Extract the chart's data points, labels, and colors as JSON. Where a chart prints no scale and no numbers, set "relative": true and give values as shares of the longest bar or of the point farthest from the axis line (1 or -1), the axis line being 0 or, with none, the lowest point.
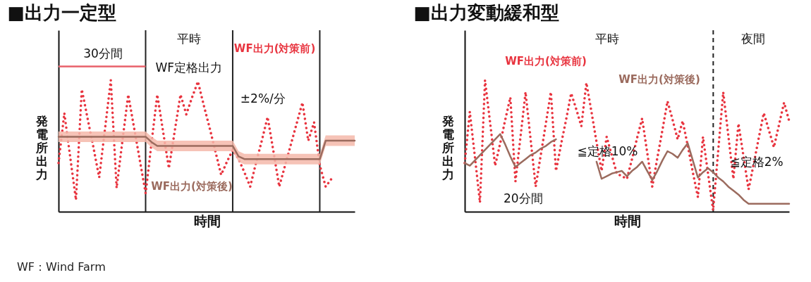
{
  "chart_data": [
    {
      "type": "line",
      "title": "■出力一定型",
      "xlabel": "時間",
      "ylabel": "発電所出力",
      "relative": true,
      "grid": "x",
      "categories": [
        null,
        null,
        null,
        null,
        null,
        null,
        null,
        null,
        null,
        null,
        null,
        null,
        null,
        null,
        null,
        null,
        null,
        null,
        null,
        null,
        null,
        null,
        null,
        null,
        null,
        null,
        null,
        null,
        null,
        null,
        null,
        null,
        null,
        null,
        null,
        null,
        null,
        null,
        null,
        null,
        null,
        null,
        null,
        null,
        null,
        null,
        null,
        null,
        null,
        null,
        null,
        null
      ],
      "series": [
        {
          "name": "WF出力(対策前)",
          "color": "#e8343f",
          "line_style": "dotted",
          "values": [
            0.37,
            0.75,
            0.42,
            0.09,
            0.93,
            0.71,
            0.49,
            0.26,
            0.63,
            1.0,
            0.18,
            0.54,
            0.89,
            0.64,
            0.39,
            0.14,
            0.52,
            0.89,
            0.61,
            0.33,
            0.61,
            0.89,
            0.74,
            0.87,
            0.99,
            0.81,
            0.64,
            0.46,
            0.28,
            0.38,
            0.47,
            0.4,
            0.3,
            0.19,
            0.37,
            0.54,
            0.72,
            0.46,
            0.19,
            0.35,
            0.51,
            0.67,
            0.83,
            0.54,
            0.68,
            0.35,
            0.19,
            0.25,
            null,
            null,
            null,
            null
          ]
        },
        {
          "name": "WF出力(対策後)",
          "color": "#9b6b5e",
          "line_style": "solid",
          "values": [
            0.57,
            0.57,
            0.57,
            0.57,
            0.57,
            0.57,
            0.57,
            0.57,
            0.57,
            0.57,
            0.57,
            0.57,
            0.57,
            0.57,
            0.57,
            0.57,
            0.53,
            0.5,
            0.5,
            0.5,
            0.5,
            0.5,
            0.5,
            0.5,
            0.5,
            0.5,
            0.5,
            0.5,
            0.5,
            0.5,
            0.5,
            0.42,
            0.4,
            0.4,
            0.4,
            0.4,
            0.4,
            0.4,
            0.4,
            0.4,
            0.4,
            0.4,
            0.4,
            0.4,
            0.4,
            0.4,
            0.54,
            0.54,
            0.54,
            0.54,
            0.54,
            0.54
          ],
          "lower": [
            0.53,
            0.53,
            0.53,
            0.53,
            0.53,
            0.53,
            0.53,
            0.53,
            0.53,
            0.53,
            0.53,
            0.53,
            0.53,
            0.53,
            0.53,
            0.53,
            0.49,
            0.46,
            0.46,
            0.46,
            0.46,
            0.46,
            0.46,
            0.46,
            0.46,
            0.46,
            0.46,
            0.46,
            0.46,
            0.46,
            0.46,
            0.38,
            0.36,
            0.36,
            0.36,
            0.36,
            0.36,
            0.36,
            0.36,
            0.36,
            0.36,
            0.36,
            0.36,
            0.36,
            0.36,
            0.36,
            0.5,
            0.5,
            0.5,
            0.5,
            0.5,
            0.5
          ],
          "upper": [
            0.61,
            0.61,
            0.61,
            0.61,
            0.61,
            0.61,
            0.61,
            0.61,
            0.61,
            0.61,
            0.61,
            0.61,
            0.61,
            0.61,
            0.61,
            0.61,
            0.57,
            0.54,
            0.54,
            0.54,
            0.54,
            0.54,
            0.54,
            0.54,
            0.54,
            0.54,
            0.54,
            0.54,
            0.54,
            0.54,
            0.54,
            0.46,
            0.44,
            0.44,
            0.44,
            0.44,
            0.44,
            0.44,
            0.44,
            0.44,
            0.44,
            0.44,
            0.44,
            0.44,
            0.44,
            0.44,
            0.58,
            0.58,
            0.58,
            0.58,
            0.58,
            0.58
          ]
        }
      ],
      "annotations": [
        "30分間",
        "平時",
        "WF定格出力",
        "±2%/分",
        "WF：Wind Farm"
      ]
    },
    {
      "type": "line",
      "title": "■出力変動緩和型",
      "xlabel": "時間",
      "ylabel": "発電所出力",
      "relative": true,
      "categories": [
        null,
        null,
        null,
        null,
        null,
        null,
        null,
        null,
        null,
        null,
        null,
        null,
        null,
        null,
        null,
        null,
        null,
        null,
        null,
        null,
        null,
        null,
        null,
        null,
        null,
        null,
        null,
        null,
        null,
        null,
        null,
        null,
        null,
        null,
        null,
        null,
        null,
        null,
        null,
        null,
        null,
        null,
        null,
        null,
        null,
        null,
        null,
        null,
        null,
        null,
        null,
        null,
        null,
        null,
        null,
        null,
        null,
        null,
        null,
        null,
        null,
        null,
        null,
        null,
        null
      ],
      "series": [
        {
          "name": "WF出力(対策前)",
          "color": "#e8343f",
          "line_style": "dotted",
          "values": [
            0.37,
            0.76,
            0.42,
            0.07,
            1.0,
            0.68,
            0.35,
            0.52,
            0.7,
            0.87,
            0.23,
            0.57,
            0.91,
            0.55,
            0.19,
            0.43,
            0.67,
            0.91,
            0.31,
            0.51,
            0.7,
            0.9,
            0.78,
            0.65,
            0.98,
            0.76,
            0.53,
            0.31,
            0.57,
            0.43,
            0.29,
            0.27,
            0.25,
            0.4,
            0.56,
            0.71,
            0.45,
            0.19,
            0.41,
            0.62,
            0.84,
            0.7,
            0.55,
            0.69,
            0.5,
            0.3,
            0.11,
            0.57,
            0.29,
            0.01,
            0.46,
            0.91,
            0.58,
            0.25,
            0.67,
            0.42,
            0.17,
            0.36,
            0.56,
            0.75,
            0.62,
            0.49,
            0.66,
            0.83,
            0.69
          ]
        },
        {
          "name": "WF出力(対策後)",
          "color": "#9b6b5e",
          "line_style": "solid",
          "values": [
            0.37,
            0.35,
            0.39,
            0.43,
            0.47,
            0.51,
            0.55,
            0.59,
            0.51,
            0.42,
            0.34,
            0.37,
            0.4,
            0.43,
            0.45,
            0.48,
            0.5,
            0.53,
            0.55,
            null,
            null,
            null,
            null,
            null,
            null,
            null,
            0.38,
            0.25,
            0.27,
            0.29,
            0.3,
            0.31,
            0.27,
            0.31,
            0.34,
            0.38,
            0.31,
            0.24,
            0.31,
            0.39,
            0.46,
            0.44,
            0.41,
            0.47,
            0.52,
            0.39,
            0.26,
            0.3,
            0.33,
            0.3,
            0.26,
            0.23,
            0.19,
            0.16,
            0.13,
            0.09,
            0.06,
            0.06,
            0.06,
            0.06,
            0.06,
            0.06,
            0.06,
            0.06,
            0.06
          ]
        }
      ],
      "annotations": [
        "平時",
        "夜間",
        "≦定格10%",
        "20分間",
        "≦定格2%"
      ]
    }
  ]
}
